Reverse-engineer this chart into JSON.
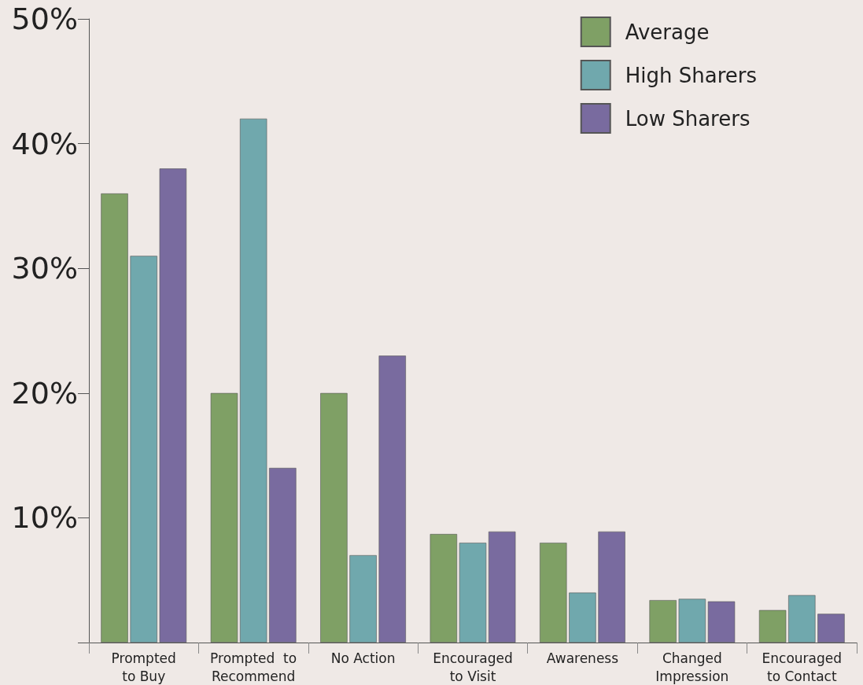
{
  "chart_data": {
    "type": "bar",
    "categories": [
      "Prompted\nto Buy",
      "Prompted  to\nRecommend",
      "No Action",
      "Encouraged\nto Visit",
      "Awareness",
      "Changed\nImpression",
      "Encouraged\nto Contact"
    ],
    "series": [
      {
        "name": "Average",
        "color": "#7fa065",
        "values": [
          36,
          20,
          20,
          8.7,
          8,
          3.4,
          2.6
        ]
      },
      {
        "name": "High Sharers",
        "color": "#70a8ad",
        "values": [
          31,
          42,
          7,
          8,
          4,
          3.5,
          3.8
        ]
      },
      {
        "name": "Low Sharers",
        "color": "#796b9f",
        "values": [
          38,
          14,
          23,
          8.9,
          8.9,
          3.3,
          2.3
        ]
      }
    ],
    "ylim": [
      0,
      50
    ],
    "yticks": [
      {
        "value": 0,
        "label": null
      },
      {
        "value": 10,
        "label": "10%"
      },
      {
        "value": 20,
        "label": "20%"
      },
      {
        "value": 30,
        "label": "30%"
      },
      {
        "value": 40,
        "label": "40%"
      },
      {
        "value": 50,
        "label": "50%"
      }
    ],
    "legend": "top right",
    "grid": false
  }
}
